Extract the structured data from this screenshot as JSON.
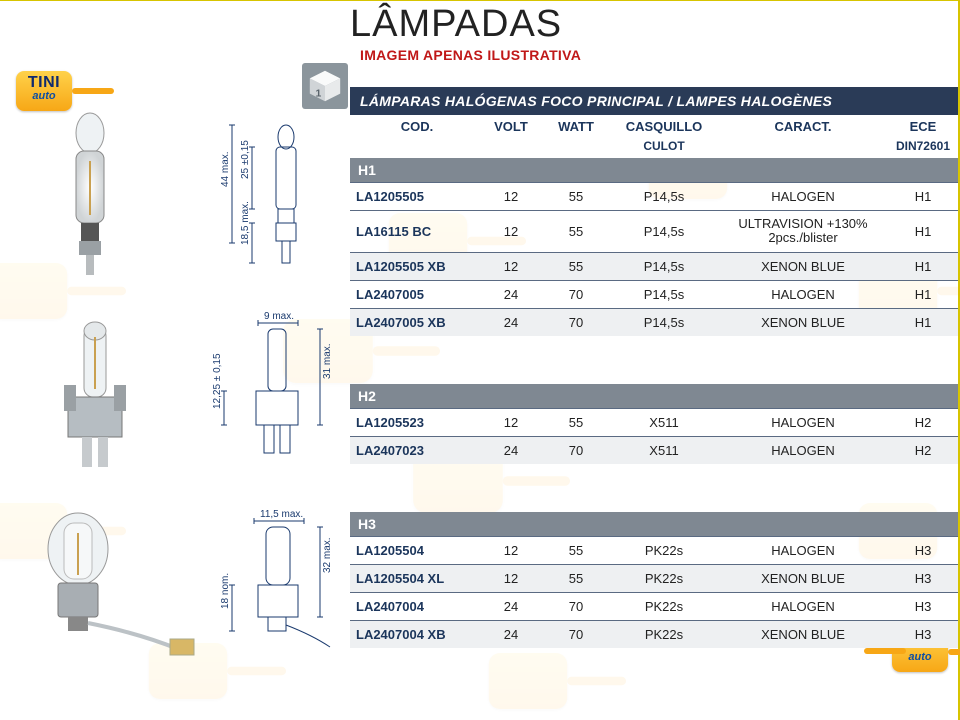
{
  "title": "LÂMPADAS",
  "subtitle": "IMAGEM APENAS ILUSTRATIVA",
  "table_header": "LÁMPARAS HALÓGENAS FOCO PRINCIPAL / LAMPES HALOGÈNES",
  "badge": {
    "line1": "TINI",
    "line2": "auto"
  },
  "columns": {
    "cod": "COD.",
    "volt": "VOLT",
    "watt": "WATT",
    "casq": "CASQUILLO",
    "casq2": "CULOT",
    "caract": "CARACT.",
    "ece": "ECE",
    "ece2": "DIN72601"
  },
  "groups": [
    {
      "name": "H1",
      "rows": [
        {
          "cod": "LA1205505",
          "volt": "12",
          "watt": "55",
          "casq": "P14,5s",
          "caract": "HALOGEN",
          "ece": "H1",
          "alt": false
        },
        {
          "cod": "LA16115 BC",
          "volt": "12",
          "watt": "55",
          "casq": "P14,5s",
          "caract": "ULTRAVISION +130%\n2pcs./blister",
          "ece": "H1",
          "alt": false
        },
        {
          "cod": "LA1205505 XB",
          "volt": "12",
          "watt": "55",
          "casq": "P14,5s",
          "caract": "XENON BLUE",
          "ece": "H1",
          "alt": true
        },
        {
          "cod": "LA2407005",
          "volt": "24",
          "watt": "70",
          "casq": "P14,5s",
          "caract": "HALOGEN",
          "ece": "H1",
          "alt": false
        },
        {
          "cod": "LA2407005 XB",
          "volt": "24",
          "watt": "70",
          "casq": "P14,5s",
          "caract": "XENON BLUE",
          "ece": "H1",
          "alt": true
        }
      ],
      "dims": {
        "height": "44 max.",
        "body": "25 ±0,15",
        "base": "18,5 max."
      }
    },
    {
      "name": "H2",
      "rows": [
        {
          "cod": "LA1205523",
          "volt": "12",
          "watt": "55",
          "casq": "X511",
          "caract": "HALOGEN",
          "ece": "H2",
          "alt": false
        },
        {
          "cod": "LA2407023",
          "volt": "24",
          "watt": "70",
          "casq": "X511",
          "caract": "HALOGEN",
          "ece": "H2",
          "alt": true
        }
      ],
      "dims": {
        "width": "9 max.",
        "height": "31 max.",
        "body": "12,25 ± 0,15"
      }
    },
    {
      "name": "H3",
      "rows": [
        {
          "cod": "LA1205504",
          "volt": "12",
          "watt": "55",
          "casq": "PK22s",
          "caract": "HALOGEN",
          "ece": "H3",
          "alt": false
        },
        {
          "cod": "LA1205504 XL",
          "volt": "12",
          "watt": "55",
          "casq": "PK22s",
          "caract": "XENON BLUE",
          "ece": "H3",
          "alt": true
        },
        {
          "cod": "LA2407004",
          "volt": "24",
          "watt": "70",
          "casq": "PK22s",
          "caract": "HALOGEN",
          "ece": "H3",
          "alt": false
        },
        {
          "cod": "LA2407004 XB",
          "volt": "24",
          "watt": "70",
          "casq": "PK22s",
          "caract": "XENON BLUE",
          "ece": "H3",
          "alt": true
        }
      ],
      "dims": {
        "width": "11,5 max.",
        "height": "32 max.",
        "base": "18 nom."
      }
    }
  ],
  "colors": {
    "header_bg": "#2a3b57",
    "group_bg": "#7f8892",
    "row_alt": "#eef0f2",
    "th_text": "#1b355b",
    "border": "#5a6a82",
    "red": "#c01818",
    "badge_grad_top": "#ffd24a",
    "badge_grad_bot": "#f7a716",
    "cube": "#8b959c",
    "dim": "#1a3a6e"
  }
}
